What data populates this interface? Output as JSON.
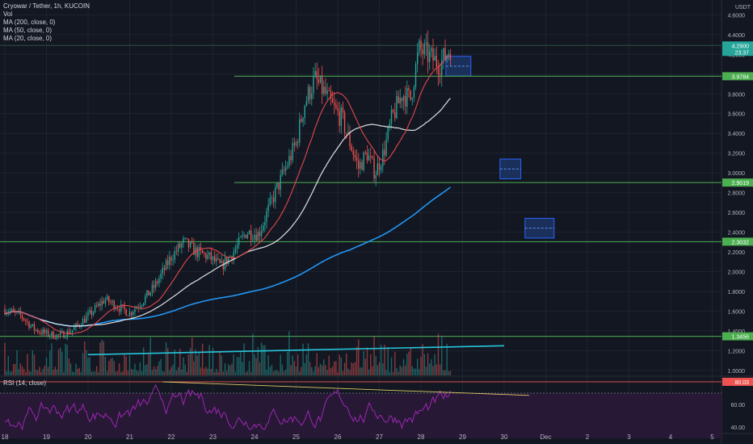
{
  "legend": {
    "symbol": "Cryowar / Tether, 1h, KUCOIN",
    "vol": "Vol",
    "ma200": "MA (200, close, 0)",
    "ma50": "MA (50, close, 0)",
    "ma20": "MA (20, close, 0)",
    "rsi": "RSI (14, close)"
  },
  "currency": "USDT",
  "colors": {
    "background": "#131722",
    "up": "#26a69a",
    "down": "#ef5350",
    "ma200": "#2196f3",
    "ma50": "#e0e0e0",
    "ma20": "#e0474c",
    "hline": "#4caf50",
    "trend": "#26c6da",
    "rsi": "#9c27b0",
    "box": "#1e3a6e"
  },
  "chart_data": {
    "type": "candlestick",
    "price_ticks": [
      "4.6000",
      "4.4000",
      "4.2000",
      "4.0000",
      "3.8000",
      "3.6000",
      "3.4000",
      "3.2000",
      "3.0000",
      "2.8000",
      "2.6000",
      "2.4000",
      "2.2000",
      "2.0000",
      "1.8000",
      "1.6000",
      "1.4000",
      "1.2000",
      "1.0000"
    ],
    "price_range": [
      0.95,
      4.75
    ],
    "x_labels": [
      "18",
      "19",
      "20",
      "21",
      "22",
      "23",
      "24",
      "25",
      "26",
      "27",
      "28",
      "29",
      "30",
      "Dec",
      "2",
      "3",
      "4",
      "5"
    ],
    "rsi_ticks": [
      "60.00",
      "40.00"
    ],
    "rsi_range": [
      35,
      85
    ],
    "price_labels": [
      {
        "value": 4.29,
        "text": "4.2900",
        "sub": "23:37",
        "color": "#26a69a"
      },
      {
        "value": 3.9784,
        "text": "3.9784",
        "color": "#4caf50"
      },
      {
        "value": 2.9019,
        "text": "2.9019",
        "color": "#4caf50"
      },
      {
        "value": 2.3032,
        "text": "2.3032",
        "color": "#4caf50"
      },
      {
        "value": 1.3456,
        "text": "1.3456",
        "color": "#4caf50"
      }
    ],
    "rsi_label": {
      "value": 80.03,
      "text": "80.03"
    },
    "horizontal_levels": [
      4.29,
      3.9784,
      2.9019,
      2.3032,
      1.3456
    ],
    "key_path": [
      [
        18.0,
        1.62
      ],
      [
        18.4,
        1.55
      ],
      [
        18.7,
        1.42
      ],
      [
        19.0,
        1.37
      ],
      [
        19.3,
        1.35
      ],
      [
        19.6,
        1.4
      ],
      [
        20.0,
        1.55
      ],
      [
        20.4,
        1.72
      ],
      [
        20.7,
        1.65
      ],
      [
        21.0,
        1.58
      ],
      [
        21.3,
        1.7
      ],
      [
        21.6,
        1.85
      ],
      [
        22.0,
        2.15
      ],
      [
        22.3,
        2.3
      ],
      [
        22.6,
        2.2
      ],
      [
        22.9,
        2.15
      ],
      [
        23.2,
        2.05
      ],
      [
        23.5,
        2.2
      ],
      [
        23.8,
        2.4
      ],
      [
        24.1,
        2.38
      ],
      [
        24.4,
        2.7
      ],
      [
        24.7,
        3.0
      ],
      [
        25.0,
        3.3
      ],
      [
        25.2,
        3.7
      ],
      [
        25.45,
        3.95
      ],
      [
        25.7,
        3.8
      ],
      [
        25.9,
        3.65
      ],
      [
        26.1,
        3.55
      ],
      [
        26.3,
        3.3
      ],
      [
        26.5,
        3.05
      ],
      [
        26.7,
        3.2
      ],
      [
        26.9,
        3.0
      ],
      [
        27.1,
        3.2
      ],
      [
        27.3,
        3.55
      ],
      [
        27.55,
        3.8
      ],
      [
        27.75,
        3.75
      ],
      [
        27.95,
        4.25
      ],
      [
        28.2,
        4.18
      ],
      [
        28.45,
        4.1
      ],
      [
        28.75,
        4.29
      ]
    ],
    "trend_line": {
      "from": [
        20.0,
        1.16
      ],
      "to": [
        30.0,
        1.25
      ]
    },
    "boxes": [
      {
        "x0": 28.6,
        "x1": 29.2,
        "y0": 3.98,
        "y1": 4.18
      },
      {
        "x0": 29.9,
        "x1": 30.4,
        "y0": 2.94,
        "y1": 3.14
      },
      {
        "x0": 30.5,
        "x1": 31.2,
        "y0": 2.34,
        "y1": 2.54
      }
    ]
  }
}
